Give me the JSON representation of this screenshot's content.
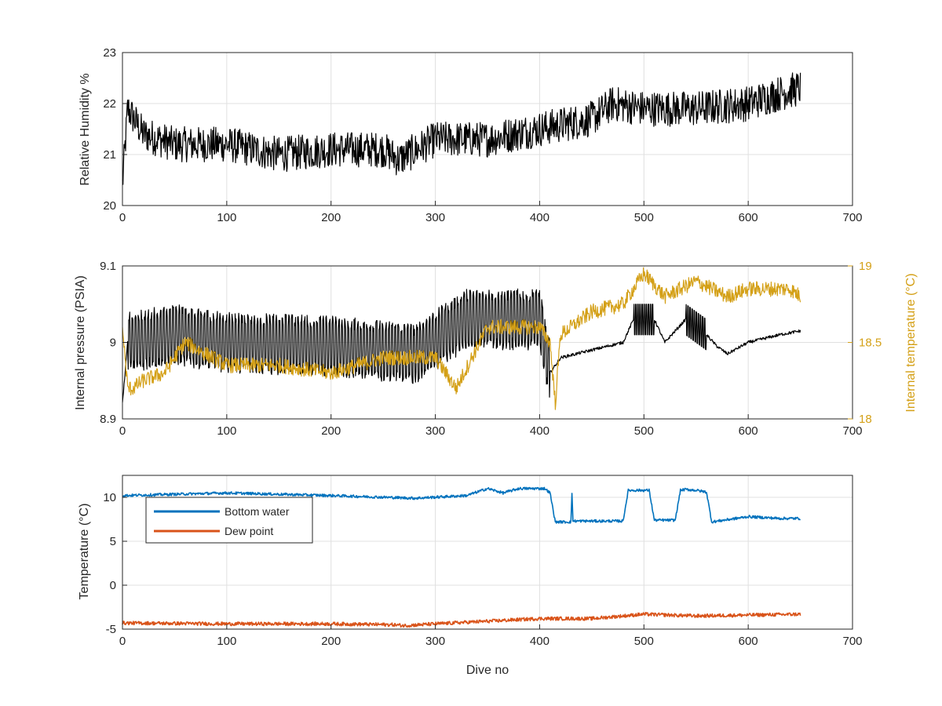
{
  "chart_data": [
    {
      "type": "line",
      "xlabel": "",
      "ylabel": "Relative Humidity %",
      "xlim": [
        0,
        700
      ],
      "ylim": [
        20,
        23
      ],
      "xticks": [
        "0",
        "100",
        "200",
        "300",
        "400",
        "500",
        "600",
        "700"
      ],
      "yticks": [
        "20",
        "21",
        "22",
        "23"
      ],
      "grid": true,
      "series": [
        {
          "color": "#000000",
          "x": [
            0,
            5,
            20,
            50,
            100,
            150,
            200,
            250,
            265,
            300,
            350,
            400,
            450,
            470,
            500,
            550,
            600,
            630,
            650
          ],
          "y": [
            20.4,
            21.9,
            21.4,
            21.2,
            21.2,
            21.0,
            21.1,
            21.1,
            20.9,
            21.3,
            21.3,
            21.5,
            21.7,
            22.0,
            21.9,
            21.9,
            22.0,
            22.2,
            22.3
          ],
          "noise": 0.35
        }
      ]
    },
    {
      "type": "line",
      "xlabel": "",
      "ylabel": "Internal pressure (PSIA)",
      "y2label": "Internal temperature (°C)",
      "xlim": [
        0,
        700
      ],
      "ylim": [
        8.9,
        9.1
      ],
      "y2lim": [
        18,
        19
      ],
      "xticks": [
        "0",
        "100",
        "200",
        "300",
        "400",
        "500",
        "600",
        "700"
      ],
      "yticks": [
        "8.9",
        "9",
        "9.1"
      ],
      "y2ticks": [
        "18",
        "18.5",
        "19"
      ],
      "grid": true,
      "series": [
        {
          "axis": "left",
          "color": "#000000",
          "x": [
            0,
            5,
            50,
            100,
            200,
            280,
            330,
            400,
            410,
            420,
            450,
            480,
            490,
            510,
            520,
            540,
            560,
            570,
            580,
            600,
            630,
            650
          ],
          "y": [
            8.92,
            9.0,
            9.01,
            9.0,
            8.995,
            8.985,
            9.03,
            9.03,
            8.96,
            8.98,
            8.99,
            9.0,
            9.03,
            9.03,
            9.0,
            9.03,
            9.01,
            8.995,
            8.985,
            9.0,
            9.01,
            9.015
          ],
          "osc_amp": 0.04
        },
        {
          "axis": "right",
          "color": "#D4A017",
          "x": [
            0,
            5,
            10,
            20,
            40,
            60,
            100,
            150,
            200,
            250,
            300,
            320,
            350,
            400,
            410,
            415,
            420,
            450,
            480,
            500,
            520,
            550,
            580,
            600,
            640,
            650
          ],
          "y": [
            18.6,
            18.2,
            18.2,
            18.25,
            18.3,
            18.5,
            18.35,
            18.35,
            18.3,
            18.4,
            18.4,
            18.2,
            18.6,
            18.6,
            18.5,
            18.1,
            18.55,
            18.7,
            18.75,
            18.95,
            18.8,
            18.9,
            18.8,
            18.85,
            18.85,
            18.8
          ],
          "noise": 0.05
        }
      ]
    },
    {
      "type": "line",
      "xlabel": "Dive no",
      "ylabel": "Temperature (°C)",
      "xlim": [
        0,
        700
      ],
      "ylim": [
        -5,
        12.5
      ],
      "xticks": [
        "0",
        "100",
        "200",
        "300",
        "400",
        "500",
        "600",
        "700"
      ],
      "yticks": [
        "-5",
        "0",
        "5",
        "10"
      ],
      "grid": true,
      "legend": "top-left",
      "series": [
        {
          "name": "Bottom water",
          "color": "#0072BD",
          "x": [
            0,
            100,
            200,
            280,
            330,
            350,
            365,
            380,
            405,
            410,
            415,
            430,
            431,
            432,
            440,
            470,
            480,
            485,
            495,
            505,
            510,
            520,
            530,
            535,
            540,
            550,
            560,
            565,
            600,
            630,
            650
          ],
          "y": [
            10.2,
            10.5,
            10.2,
            9.9,
            10.2,
            11.0,
            10.5,
            11.0,
            11.0,
            10.5,
            7.2,
            7.2,
            10.5,
            7.3,
            7.3,
            7.3,
            7.3,
            10.8,
            10.8,
            10.8,
            7.4,
            7.4,
            7.4,
            10.8,
            10.9,
            10.8,
            10.6,
            7.2,
            7.8,
            7.6,
            7.6
          ],
          "noise": 0.15
        },
        {
          "name": "Dew point",
          "color": "#D95319",
          "x": [
            0,
            100,
            200,
            260,
            270,
            300,
            350,
            400,
            450,
            500,
            550,
            600,
            650
          ],
          "y": [
            -4.3,
            -4.4,
            -4.4,
            -4.5,
            -4.6,
            -4.4,
            -4.1,
            -3.8,
            -3.8,
            -3.3,
            -3.5,
            -3.4,
            -3.3
          ],
          "noise": 0.2
        }
      ]
    }
  ]
}
